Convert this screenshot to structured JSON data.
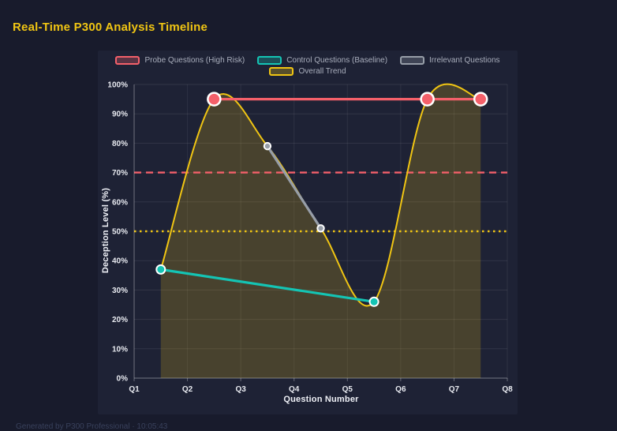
{
  "page": {
    "title": "Real-Time P300 Analysis Timeline",
    "footer": "Generated by P300 Professional · 10:05:43"
  },
  "colors": {
    "background": "#181b2c",
    "panel": "#1e2235",
    "title": "#f0c513",
    "probe": "#f4606a",
    "control": "#14c4b4",
    "irrelevant": "#979ea8",
    "trend": "#f0c513",
    "axis_text": "#e8eaf0",
    "legend_text": "#a9aebc",
    "marker_ring": "#ffffff"
  },
  "chart_data": {
    "type": "line",
    "title": "Real-Time P300 Analysis Timeline",
    "xlabel": "Question Number",
    "ylabel": "Deception Level (%)",
    "x_ticks": [
      "Q1",
      "Q2",
      "Q3",
      "Q4",
      "Q5",
      "Q6",
      "Q7",
      "Q8"
    ],
    "x_range": [
      1,
      8
    ],
    "ylim": [
      0,
      100
    ],
    "y_tick_step": 10,
    "y_tick_suffix": "%",
    "grid": true,
    "legend_position": "top",
    "series": [
      {
        "name": "Probe Questions (High Risk)",
        "color": "#f4606a",
        "points": [
          [
            2.5,
            95
          ],
          [
            6.5,
            95
          ],
          [
            7.5,
            95
          ]
        ],
        "smooth": false,
        "area_fill": false,
        "line_width": 3.2,
        "marker_radius": 8
      },
      {
        "name": "Control Questions (Baseline)",
        "color": "#14c4b4",
        "points": [
          [
            1.5,
            37
          ],
          [
            5.5,
            26
          ]
        ],
        "smooth": false,
        "area_fill": false,
        "line_width": 3.2,
        "marker_radius": 5.5
      },
      {
        "name": "Irrelevant Questions",
        "color": "#979ea8",
        "points": [
          [
            3.5,
            79
          ],
          [
            4.5,
            51
          ]
        ],
        "smooth": false,
        "area_fill": false,
        "line_width": 3.2,
        "marker_radius": 4.2
      },
      {
        "name": "Overall Trend",
        "color": "#f0c513",
        "points": [
          [
            1.5,
            37
          ],
          [
            2.5,
            95
          ],
          [
            3.5,
            79
          ],
          [
            4.5,
            51
          ],
          [
            5.5,
            26
          ],
          [
            6.5,
            95
          ],
          [
            7.5,
            95
          ]
        ],
        "smooth": true,
        "area_fill": true,
        "line_width": 2,
        "marker_radius": 0
      }
    ],
    "thresholds": [
      {
        "value": 70,
        "color": "#f4606a",
        "style": "dashed"
      },
      {
        "value": 50,
        "color": "#f0c513",
        "style": "dotted"
      }
    ]
  }
}
